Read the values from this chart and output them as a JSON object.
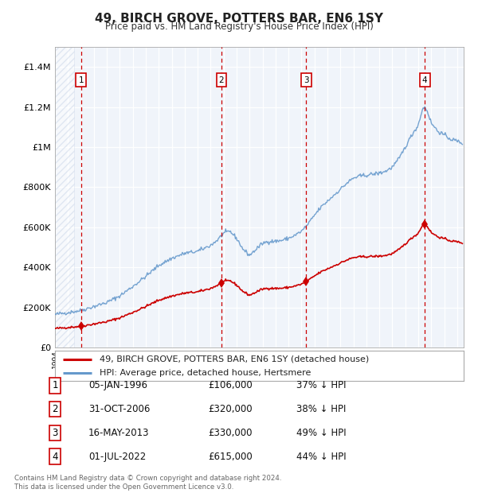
{
  "title": "49, BIRCH GROVE, POTTERS BAR, EN6 1SY",
  "subtitle": "Price paid vs. HM Land Registry's House Price Index (HPI)",
  "xlim": [
    1994.0,
    2025.5
  ],
  "ylim": [
    0,
    1500000
  ],
  "yticks": [
    0,
    200000,
    400000,
    600000,
    800000,
    1000000,
    1200000,
    1400000
  ],
  "ytick_labels": [
    "£0",
    "£200K",
    "£400K",
    "£600K",
    "£800K",
    "£1M",
    "£1.2M",
    "£1.4M"
  ],
  "sale_dates_num": [
    1996.02,
    2006.83,
    2013.37,
    2022.5
  ],
  "sale_prices": [
    106000,
    320000,
    330000,
    615000
  ],
  "sale_labels": [
    "1",
    "2",
    "3",
    "4"
  ],
  "sale_color": "#cc0000",
  "hpi_color": "#6699cc",
  "bg_color": "#ffffff",
  "plot_bg_color": "#f0f4fa",
  "hatch_color": "#c8d4e8",
  "table_rows": [
    [
      "1",
      "05-JAN-1996",
      "£106,000",
      "37% ↓ HPI"
    ],
    [
      "2",
      "31-OCT-2006",
      "£320,000",
      "38% ↓ HPI"
    ],
    [
      "3",
      "16-MAY-2013",
      "£330,000",
      "49% ↓ HPI"
    ],
    [
      "4",
      "01-JUL-2022",
      "£615,000",
      "44% ↓ HPI"
    ]
  ],
  "legend_line1": "49, BIRCH GROVE, POTTERS BAR, EN6 1SY (detached house)",
  "legend_line2": "HPI: Average price, detached house, Hertsmere",
  "footer": "Contains HM Land Registry data © Crown copyright and database right 2024.\nThis data is licensed under the Open Government Licence v3.0."
}
